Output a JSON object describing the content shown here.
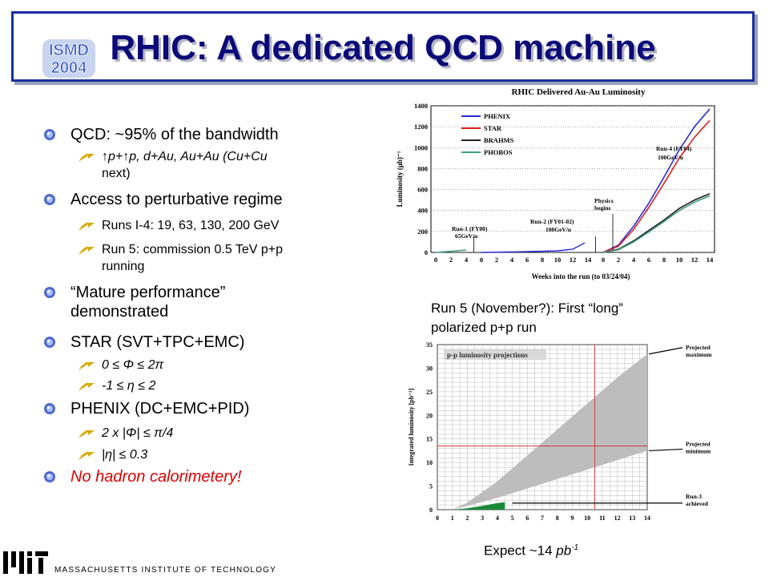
{
  "title": "RHIC: A dedicated QCD machine",
  "logo": {
    "line1": "ISMD",
    "line2": "2004"
  },
  "bullets": {
    "b1": "QCD: ~95% of the bandwidth",
    "b1_sub1_a": "p+",
    "b1_sub1_b": "p, d+Au, Au+Au (Cu+Cu",
    "b1_sub1_c": "next)",
    "b2": "Access to perturbative regime",
    "b2_sub1": "Runs I-4: 19, 63, 130, 200 GeV",
    "b2_sub2_a": "Run 5: commission 0.5 TeV p+p",
    "b2_sub2_b": "running",
    "b3_a": "“Mature performance”",
    "b3_b": "demonstrated",
    "b4": "STAR (SVT+TPC+EMC)",
    "b4_sub1": "0 ≤ Φ ≤ 2π",
    "b4_sub2": "-1 ≤ η ≤ 2",
    "b5": "PHENIX (DC+EMC+PID)",
    "b5_sub1": "2 x |Φ| ≤ π/4",
    "b5_sub2": "|η| ≤ 0.3",
    "b6": "No hadron calorimetery!"
  },
  "caption1_a": "Run 5 (November?): First “long”",
  "caption1_b": "polarized p+p run",
  "caption2_a": "Expect ~14 ",
  "caption2_b": "pb",
  "caption2_c": "-1",
  "footer": "MASSACHUSETTS INSTITUTE OF TECHNOLOGY",
  "colors": {
    "title": "#0a0a78",
    "frame": "#1a2ea0",
    "no_hadron": "#e00000",
    "phenix": "#2a2adc",
    "star": "#e02020",
    "brahms": "#202020",
    "phobos": "#40a080"
  },
  "chart_data": [
    {
      "type": "line",
      "title": "RHIC Delivered Au-Au Luminosity",
      "xlabel": "Weeks into the run  (to 03/24/04)",
      "ylabel": "Luminosity (μb)⁻¹",
      "ylim": [
        0,
        1400
      ],
      "yticks": [
        "0",
        "200",
        "400",
        "600",
        "800",
        "1000",
        "1200",
        "1400"
      ],
      "xticks": [
        "0",
        "2",
        "4",
        "0",
        "2",
        "4",
        "6",
        "8",
        "10",
        "12",
        "14",
        "0",
        "2",
        "4",
        "6",
        "8",
        "10",
        "12",
        "14"
      ],
      "legend": [
        "PHENIX",
        "STAR",
        "BRAHMS",
        "PHOBOS"
      ],
      "annotations": [
        "Run-1 (FY00)",
        "65GeV/u",
        "Run-2 (FY01-02)",
        "100GeV/u",
        "Physics",
        "begins",
        "Run-4 (FY04)",
        "100GeV/u"
      ],
      "series": [
        {
          "name": "PHENIX",
          "x": [
            0,
            2,
            4,
            6,
            8,
            10,
            12,
            14
          ],
          "values": [
            0,
            70,
            250,
            470,
            720,
            980,
            1200,
            1370
          ]
        },
        {
          "name": "STAR",
          "x": [
            0,
            2,
            4,
            6,
            8,
            10,
            12,
            14
          ],
          "values": [
            0,
            60,
            220,
            430,
            660,
            900,
            1100,
            1260
          ]
        },
        {
          "name": "BRAHMS",
          "x": [
            0,
            2,
            4,
            6,
            8,
            10,
            12,
            14
          ],
          "values": [
            0,
            30,
            110,
            210,
            310,
            420,
            500,
            560
          ]
        },
        {
          "name": "PHOBOS",
          "x": [
            0,
            2,
            4,
            6,
            8,
            10,
            12,
            14
          ],
          "values": [
            0,
            25,
            100,
            195,
            295,
            400,
            480,
            540
          ]
        }
      ]
    },
    {
      "type": "area",
      "title": "p-p luminosity projections",
      "ylabel": "Integrated luminosity [pb⁻¹]",
      "ylim": [
        0,
        35
      ],
      "xlim": [
        0,
        14
      ],
      "xticks": [
        "0",
        "1",
        "2",
        "3",
        "4",
        "5",
        "6",
        "7",
        "8",
        "9",
        "10",
        "11",
        "12",
        "13",
        "14"
      ],
      "yticks": [
        "0",
        "5",
        "10",
        "15",
        "20",
        "25",
        "30",
        "35"
      ],
      "annotations": [
        "Projected",
        "maximum",
        "Projected",
        "minimum",
        "Run-3",
        "achieved"
      ],
      "series": [
        {
          "name": "Projected maximum",
          "x": [
            1,
            2,
            4,
            6,
            8,
            10,
            12,
            14
          ],
          "values": [
            0,
            1.5,
            6,
            11.5,
            17,
            22.5,
            28,
            33
          ]
        },
        {
          "name": "Projected minimum",
          "x": [
            1,
            2,
            4,
            6,
            8,
            10,
            12,
            14
          ],
          "values": [
            0,
            0.8,
            2.5,
            4.5,
            6.5,
            8.5,
            10.5,
            12.5
          ]
        },
        {
          "name": "Run-3 achieved",
          "x": [
            1,
            2,
            3,
            4,
            4.5
          ],
          "values": [
            0,
            0.3,
            0.8,
            1.4,
            1.6
          ]
        }
      ]
    }
  ]
}
